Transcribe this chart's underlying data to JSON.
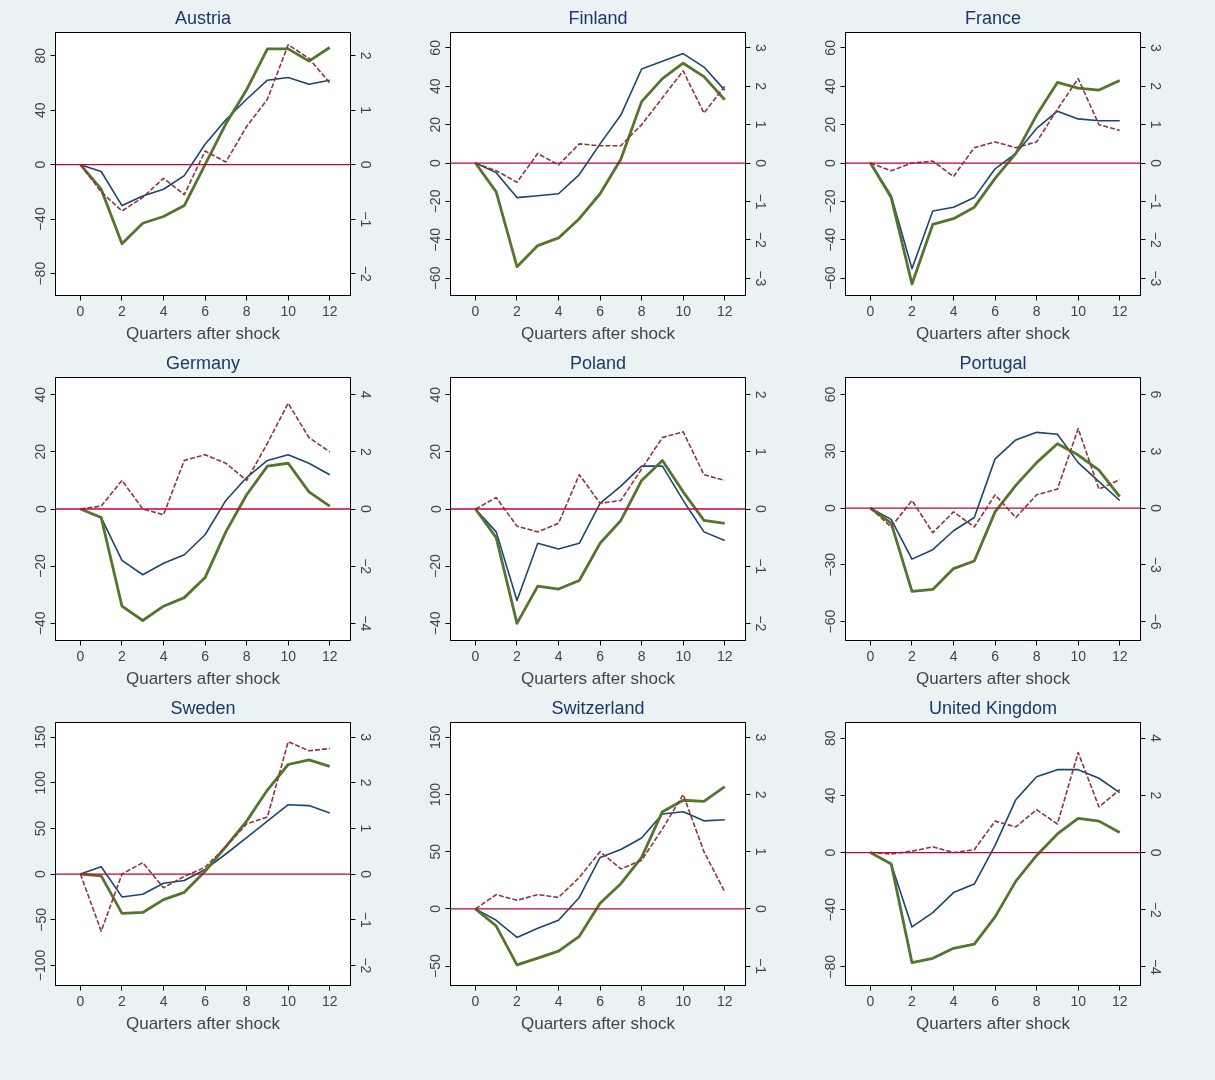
{
  "chart_data": [
    {
      "type": "line",
      "title": "Austria",
      "xlabel": "Quarters after shock",
      "x": [
        0,
        1,
        2,
        3,
        4,
        5,
        6,
        7,
        8,
        9,
        10,
        11,
        12
      ],
      "xlim": [
        -1.2,
        13
      ],
      "xticks": [
        0,
        2,
        4,
        6,
        8,
        10,
        12
      ],
      "ylim": [
        -96,
        97
      ],
      "yticks": [
        -80,
        -40,
        0,
        40,
        80
      ],
      "y2lim": [
        -2.4,
        2.425
      ],
      "y2ticks": [
        -2,
        -1,
        0,
        1,
        2
      ],
      "ref_lines": [
        {
          "axis": "y",
          "value": 0,
          "color": "#c10534"
        }
      ],
      "series": [
        {
          "color": "#1a476f",
          "values": [
            0,
            -5,
            -30,
            -23,
            -18,
            -8,
            15,
            33,
            48,
            62,
            64,
            59,
            62
          ]
        },
        {
          "color": "#55752f",
          "values": [
            0,
            -18,
            -58,
            -43,
            -38,
            -30,
            0,
            30,
            55,
            85,
            85,
            76,
            86
          ]
        },
        {
          "color": "#90353b",
          "axis": "y2",
          "line_style": "dashed",
          "values": [
            0,
            -0.5,
            -0.85,
            -0.6,
            -0.25,
            -0.55,
            0.25,
            0.05,
            0.7,
            1.2,
            2.2,
            1.95,
            1.5
          ]
        }
      ]
    },
    {
      "type": "line",
      "title": "Finland",
      "xlabel": "Quarters after shock",
      "x": [
        0,
        1,
        2,
        3,
        4,
        5,
        6,
        7,
        8,
        9,
        10,
        11,
        12
      ],
      "xlim": [
        -1.2,
        13
      ],
      "xticks": [
        0,
        2,
        4,
        6,
        8,
        10,
        12
      ],
      "ylim": [
        -69,
        68
      ],
      "yticks": [
        -60,
        -40,
        -20,
        0,
        20,
        40,
        60
      ],
      "y2lim": [
        -3.45,
        3.4
      ],
      "y2ticks": [
        -3,
        -2,
        -1,
        0,
        1,
        2,
        3
      ],
      "ref_lines": [
        {
          "axis": "y",
          "value": 0,
          "color": "#c10534"
        }
      ],
      "series": [
        {
          "color": "#1a476f",
          "values": [
            0,
            -5,
            -18,
            -17,
            -16,
            -6,
            10,
            25,
            49,
            53,
            57,
            50,
            38
          ]
        },
        {
          "color": "#55752f",
          "values": [
            0,
            -15,
            -54,
            -43,
            -39,
            -29,
            -16,
            2,
            32,
            44,
            52,
            45,
            33
          ]
        },
        {
          "color": "#90353b",
          "axis": "y2",
          "line_style": "dashed",
          "values": [
            0,
            -0.2,
            -0.5,
            0.25,
            -0.05,
            0.5,
            0.45,
            0.45,
            1.0,
            1.7,
            2.4,
            1.3,
            2.0
          ]
        }
      ]
    },
    {
      "type": "line",
      "title": "France",
      "xlabel": "Quarters after shock",
      "x": [
        0,
        1,
        2,
        3,
        4,
        5,
        6,
        7,
        8,
        9,
        10,
        11,
        12
      ],
      "xlim": [
        -1.2,
        13
      ],
      "xticks": [
        0,
        2,
        4,
        6,
        8,
        10,
        12
      ],
      "ylim": [
        -69,
        68
      ],
      "yticks": [
        -60,
        -40,
        -20,
        0,
        20,
        40,
        60
      ],
      "y2lim": [
        -3.45,
        3.4
      ],
      "y2ticks": [
        -3,
        -2,
        -1,
        0,
        1,
        2,
        3
      ],
      "ref_lines": [
        {
          "axis": "y",
          "value": 0,
          "color": "#c10534"
        }
      ],
      "series": [
        {
          "color": "#1a476f",
          "values": [
            0,
            -17,
            -55,
            -25,
            -23,
            -18,
            -3,
            5,
            18,
            27,
            23,
            22,
            22
          ]
        },
        {
          "color": "#55752f",
          "values": [
            0,
            -18,
            -63,
            -32,
            -29,
            -23,
            -8,
            5,
            25,
            42,
            39,
            38,
            43
          ]
        },
        {
          "color": "#90353b",
          "axis": "y2",
          "line_style": "dashed",
          "values": [
            0,
            -0.2,
            0,
            0.05,
            -0.35,
            0.4,
            0.55,
            0.4,
            0.55,
            1.4,
            2.2,
            1.0,
            0.85
          ]
        }
      ]
    },
    {
      "type": "line",
      "title": "Germany",
      "xlabel": "Quarters after shock",
      "x": [
        0,
        1,
        2,
        3,
        4,
        5,
        6,
        7,
        8,
        9,
        10,
        11,
        12
      ],
      "xlim": [
        -1.2,
        13
      ],
      "xticks": [
        0,
        2,
        4,
        6,
        8,
        10,
        12
      ],
      "ylim": [
        -46,
        46
      ],
      "yticks": [
        -40,
        -20,
        0,
        20,
        40
      ],
      "y2lim": [
        -4.6,
        4.6
      ],
      "y2ticks": [
        -4,
        -2,
        0,
        2,
        4
      ],
      "ref_lines": [
        {
          "axis": "y",
          "value": 0,
          "color": "#c10534"
        }
      ],
      "series": [
        {
          "color": "#1a476f",
          "values": [
            0,
            -3,
            -18,
            -23,
            -19,
            -16,
            -9,
            3,
            11,
            17,
            19,
            16,
            12
          ]
        },
        {
          "color": "#55752f",
          "values": [
            0,
            -3,
            -34,
            -39,
            -34,
            -31,
            -24,
            -8,
            5,
            15,
            16,
            6,
            1
          ]
        },
        {
          "color": "#90353b",
          "axis": "y2",
          "line_style": "dashed",
          "values": [
            0,
            0.1,
            1.0,
            0,
            -0.2,
            1.7,
            1.9,
            1.6,
            1.0,
            2.3,
            3.7,
            2.5,
            2.0
          ]
        }
      ]
    },
    {
      "type": "line",
      "title": "Poland",
      "xlabel": "Quarters after shock",
      "x": [
        0,
        1,
        2,
        3,
        4,
        5,
        6,
        7,
        8,
        9,
        10,
        11,
        12
      ],
      "xlim": [
        -1.2,
        13
      ],
      "xticks": [
        0,
        2,
        4,
        6,
        8,
        10,
        12
      ],
      "ylim": [
        -46,
        46
      ],
      "yticks": [
        -40,
        -20,
        0,
        20,
        40
      ],
      "y2lim": [
        -2.3,
        2.3
      ],
      "y2ticks": [
        -2,
        -1,
        0,
        1,
        2
      ],
      "ref_lines": [
        {
          "axis": "y",
          "value": 0,
          "color": "#c10534"
        }
      ],
      "series": [
        {
          "color": "#1a476f",
          "values": [
            0,
            -8,
            -32,
            -12,
            -14,
            -12,
            2,
            8,
            15,
            15,
            3,
            -8,
            -11
          ]
        },
        {
          "color": "#55752f",
          "values": [
            0,
            -10,
            -40,
            -27,
            -28,
            -25,
            -12,
            -4,
            10,
            17,
            6,
            -4,
            -5
          ]
        },
        {
          "color": "#90353b",
          "axis": "y2",
          "line_style": "dashed",
          "values": [
            0,
            0.2,
            -0.3,
            -0.4,
            -0.25,
            0.6,
            0.1,
            0.15,
            0.7,
            1.25,
            1.35,
            0.6,
            0.5
          ]
        }
      ]
    },
    {
      "type": "line",
      "title": "Portugal",
      "xlabel": "Quarters after shock",
      "x": [
        0,
        1,
        2,
        3,
        4,
        5,
        6,
        7,
        8,
        9,
        10,
        11,
        12
      ],
      "xlim": [
        -1.2,
        13
      ],
      "xticks": [
        0,
        2,
        4,
        6,
        8,
        10,
        12
      ],
      "ylim": [
        -70,
        69
      ],
      "yticks": [
        -60,
        -30,
        0,
        30,
        60
      ],
      "y2lim": [
        -7,
        6.9
      ],
      "y2ticks": [
        -6,
        -3,
        0,
        3,
        6
      ],
      "ref_lines": [
        {
          "axis": "y",
          "value": 0,
          "color": "#c10534"
        }
      ],
      "series": [
        {
          "color": "#1a476f",
          "values": [
            0,
            -6,
            -27,
            -22,
            -12,
            -5,
            26,
            36,
            40,
            39,
            24,
            14,
            4
          ]
        },
        {
          "color": "#55752f",
          "values": [
            0,
            -8,
            -44,
            -43,
            -32,
            -28,
            -2,
            12,
            24,
            34,
            28,
            20,
            6
          ]
        },
        {
          "color": "#90353b",
          "axis": "y2",
          "line_style": "dashed",
          "values": [
            0,
            -1.0,
            0.4,
            -1.3,
            -0.2,
            -1.0,
            0.7,
            -0.5,
            0.7,
            1.0,
            4.2,
            1.0,
            1.5
          ]
        }
      ]
    },
    {
      "type": "line",
      "title": "Sweden",
      "xlabel": "Quarters after shock",
      "x": [
        0,
        1,
        2,
        3,
        4,
        5,
        6,
        7,
        8,
        9,
        10,
        11,
        12
      ],
      "xlim": [
        -1.2,
        13
      ],
      "xticks": [
        0,
        2,
        4,
        6,
        8,
        10,
        12
      ],
      "ylim": [
        -122,
        166
      ],
      "yticks": [
        -100,
        -50,
        0,
        50,
        100,
        150
      ],
      "y2lim": [
        -2.44,
        3.32
      ],
      "y2ticks": [
        -2,
        -1,
        0,
        1,
        2,
        3
      ],
      "ref_lines": [
        {
          "axis": "y",
          "value": 0,
          "color": "#c10534"
        }
      ],
      "series": [
        {
          "color": "#1a476f",
          "values": [
            0,
            8,
            -25,
            -22,
            -10,
            -7,
            5,
            22,
            40,
            58,
            76,
            75,
            67
          ]
        },
        {
          "color": "#55752f",
          "values": [
            0,
            -2,
            -43,
            -42,
            -28,
            -20,
            3,
            30,
            58,
            92,
            120,
            125,
            118
          ]
        },
        {
          "color": "#90353b",
          "axis": "y2",
          "line_style": "dashed",
          "values": [
            0,
            -1.25,
            0.0,
            0.25,
            -0.3,
            -0.05,
            0.15,
            0.6,
            1.1,
            1.25,
            2.9,
            2.7,
            2.75
          ]
        }
      ]
    },
    {
      "type": "line",
      "title": "Switzerland",
      "xlabel": "Quarters after shock",
      "x": [
        0,
        1,
        2,
        3,
        4,
        5,
        6,
        7,
        8,
        9,
        10,
        11,
        12
      ],
      "xlim": [
        -1.2,
        13
      ],
      "xticks": [
        0,
        2,
        4,
        6,
        8,
        10,
        12
      ],
      "ylim": [
        -67,
        163
      ],
      "yticks": [
        -50,
        0,
        50,
        100,
        150
      ],
      "y2lim": [
        -1.34,
        3.26
      ],
      "y2ticks": [
        -1,
        0,
        1,
        2,
        3
      ],
      "ref_lines": [
        {
          "axis": "y",
          "value": 0,
          "color": "#c10534"
        }
      ],
      "series": [
        {
          "color": "#1a476f",
          "values": [
            0,
            -10,
            -25,
            -17,
            -10,
            10,
            45,
            52,
            62,
            83,
            85,
            77,
            78
          ]
        },
        {
          "color": "#55752f",
          "values": [
            0,
            -15,
            -49,
            -43,
            -37,
            -24,
            5,
            22,
            45,
            85,
            95,
            94,
            107
          ]
        },
        {
          "color": "#90353b",
          "axis": "y2",
          "line_style": "dashed",
          "values": [
            0,
            0.25,
            0.15,
            0.25,
            0.2,
            0.55,
            1.0,
            0.7,
            0.85,
            1.4,
            2.0,
            1.0,
            0.3
          ]
        }
      ]
    },
    {
      "type": "line",
      "title": "United Kingdom",
      "xlabel": "Quarters after shock",
      "x": [
        0,
        1,
        2,
        3,
        4,
        5,
        6,
        7,
        8,
        9,
        10,
        11,
        12
      ],
      "xlim": [
        -1.2,
        13
      ],
      "xticks": [
        0,
        2,
        4,
        6,
        8,
        10,
        12
      ],
      "ylim": [
        -93,
        91
      ],
      "yticks": [
        -80,
        -40,
        0,
        40,
        80
      ],
      "y2lim": [
        -4.65,
        4.55
      ],
      "y2ticks": [
        -4,
        -2,
        0,
        2,
        4
      ],
      "ref_lines": [
        {
          "axis": "y",
          "value": 0,
          "color": "#c10534"
        }
      ],
      "series": [
        {
          "color": "#1a476f",
          "values": [
            0,
            -8,
            -52,
            -42,
            -28,
            -22,
            5,
            37,
            53,
            58,
            58,
            52,
            42
          ]
        },
        {
          "color": "#55752f",
          "values": [
            0,
            -8,
            -77,
            -74,
            -67,
            -64,
            -45,
            -20,
            -2,
            13,
            24,
            22,
            14
          ]
        },
        {
          "color": "#90353b",
          "axis": "y2",
          "line_style": "dashed",
          "values": [
            0,
            -0.05,
            0.05,
            0.2,
            0,
            0.1,
            1.1,
            0.9,
            1.5,
            1.0,
            3.5,
            1.6,
            2.2
          ]
        }
      ]
    }
  ]
}
